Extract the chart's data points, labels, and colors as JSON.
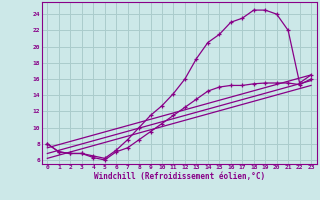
{
  "xlabel": "Windchill (Refroidissement éolien,°C)",
  "background_color": "#cce8e8",
  "grid_color": "#aacccc",
  "line_color": "#880088",
  "xlim": [
    -0.5,
    23.5
  ],
  "ylim": [
    5.5,
    25.5
  ],
  "yticks": [
    6,
    8,
    10,
    12,
    14,
    16,
    18,
    20,
    22,
    24
  ],
  "xticks": [
    0,
    1,
    2,
    3,
    4,
    5,
    6,
    7,
    8,
    9,
    10,
    11,
    12,
    13,
    14,
    15,
    16,
    17,
    18,
    19,
    20,
    21,
    22,
    23
  ],
  "curve1_x": [
    0,
    1,
    2,
    3,
    4,
    5,
    6,
    7,
    8,
    9,
    10,
    11,
    12,
    13,
    14,
    15,
    16,
    17,
    18,
    19,
    20,
    21,
    22,
    23
  ],
  "curve1_y": [
    8.0,
    7.0,
    6.8,
    6.8,
    6.5,
    6.2,
    7.2,
    8.5,
    10.0,
    11.5,
    12.7,
    14.2,
    16.0,
    18.5,
    20.5,
    21.5,
    23.0,
    23.5,
    24.5,
    24.5,
    24.0,
    22.0,
    15.5,
    16.5
  ],
  "curve2_x": [
    0,
    1,
    2,
    3,
    4,
    5,
    6,
    7,
    8,
    9,
    10,
    11,
    12,
    13,
    14,
    15,
    16,
    17,
    18,
    19,
    20,
    21,
    22,
    23
  ],
  "curve2_y": [
    8.0,
    7.0,
    6.8,
    6.8,
    6.3,
    6.0,
    7.0,
    7.5,
    8.5,
    9.5,
    10.5,
    11.5,
    12.5,
    13.5,
    14.5,
    15.0,
    15.2,
    15.2,
    15.4,
    15.5,
    15.5,
    15.5,
    15.3,
    16.0
  ],
  "line1_x": [
    0,
    23
  ],
  "line1_y": [
    7.5,
    16.5
  ],
  "line2_x": [
    0,
    23
  ],
  "line2_y": [
    6.8,
    15.8
  ],
  "line3_x": [
    0,
    23
  ],
  "line3_y": [
    6.2,
    15.2
  ]
}
